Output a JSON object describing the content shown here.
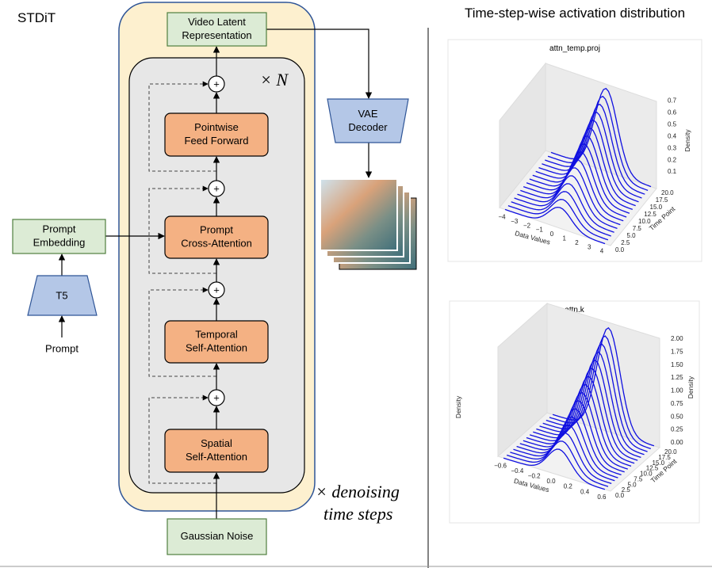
{
  "left_title": "STDiT",
  "right_title": "Time-step-wise activation distribution",
  "nodes": {
    "video_latent": [
      "Video Latent",
      "Representation"
    ],
    "feed_forward": [
      "Pointwise",
      "Feed Forward"
    ],
    "cross_attention": [
      "Prompt",
      "Cross-Attention"
    ],
    "temporal_attention": [
      "Temporal",
      "Self-Attention"
    ],
    "spatial_attention": [
      "Spatial",
      "Self-Attention"
    ],
    "gaussian_noise": [
      "Gaussian Noise"
    ],
    "prompt_embedding": [
      "Prompt",
      "Embedding"
    ],
    "t5": [
      "T5"
    ],
    "prompt": [
      "Prompt"
    ],
    "vae_decoder": [
      "VAE",
      "Decoder"
    ]
  },
  "plus_signs": [
    "+",
    "+",
    "+",
    "+"
  ],
  "repeat_inner": "× N",
  "repeat_outer": [
    "× denoising",
    "time steps"
  ],
  "plots": [
    {
      "title": "attn_temp.proj",
      "x_label": "Data Values",
      "y_label": "Time Point",
      "z_labels": [
        "Density"
      ],
      "x_ticks": [
        "−4",
        "−3",
        "−2",
        "−1",
        "0",
        "1",
        "2",
        "3",
        "4"
      ],
      "y_ticks": [
        "0.0",
        "2.5",
        "5.0",
        "7.5",
        "10.0",
        "12.5",
        "15.0",
        "17.5",
        "20.0"
      ],
      "z_ticks": [
        "0.1",
        "0.2",
        "0.3",
        "0.4",
        "0.5",
        "0.6",
        "0.7"
      ]
    },
    {
      "title": "attn.k",
      "x_label": "Data Values",
      "y_label": "Time Point",
      "z_labels": [
        "Density",
        "Density"
      ],
      "x_ticks": [
        "−0.6",
        "−0.4",
        "−0.2",
        "0.0",
        "0.2",
        "0.4",
        "0.6"
      ],
      "y_ticks": [
        "0.0",
        "2.5",
        "5.0",
        "7.5",
        "10.0",
        "12.5",
        "15.0",
        "17.5",
        "20.0"
      ],
      "z_ticks": [
        "0.00",
        "0.25",
        "0.50",
        "0.75",
        "1.00",
        "1.25",
        "1.50",
        "1.75",
        "2.00"
      ]
    }
  ]
}
